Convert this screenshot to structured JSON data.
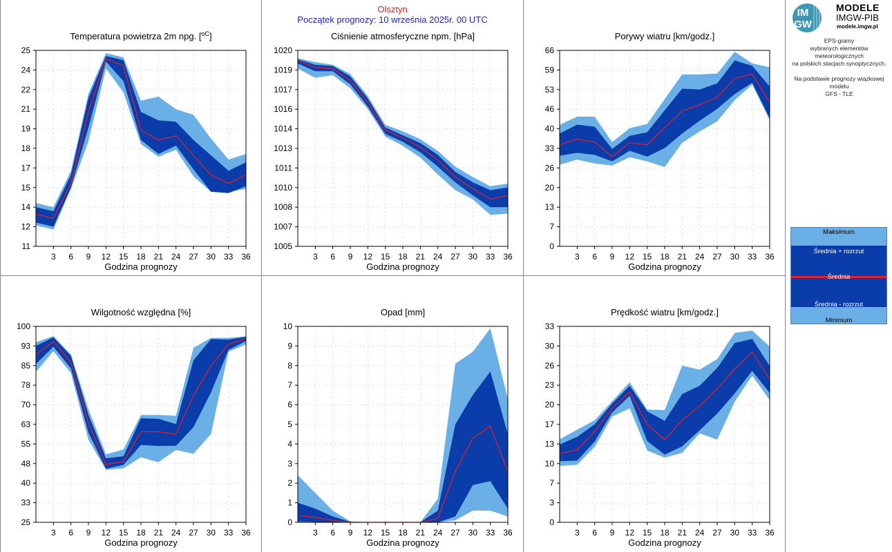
{
  "header": {
    "station": "Olsztyn",
    "forecast_start": "Początek prognozy: 10 września 2025r. 00 UTC"
  },
  "logo": {
    "mark_top": "IM",
    "mark_bottom": "GW",
    "title": "MODELE",
    "org": "IMGW-PIB",
    "url": "modele.imgw.pl"
  },
  "info": {
    "line1": "EPS-gramy",
    "line2": "wybranych elementów meteorologicznych",
    "line3": "na polskich stacjach  synoptycznych.",
    "line4": "Na podstawie prognozy wiązkowej modelu",
    "line5": "GFS - TLE"
  },
  "legend": {
    "max": "Maksimum",
    "mean_plus": "Średnia + rozrzut",
    "mean": "Średnia",
    "mean_minus": "Średnia - rozrzut",
    "min": "Minimum"
  },
  "colors": {
    "outer_band": "#6aafe6",
    "inner_band": "#0a3caa",
    "mean_line": "#e8202a",
    "title_station": "#e0201c",
    "title_start": "#1f1fb4"
  },
  "chart_data": [
    {
      "type": "area",
      "title": "Temperatura powietrza 2m npg. [",
      "title_unit": "oC",
      "title_end": "]",
      "xlabel": "Godzina prognozy",
      "x": [
        0,
        3,
        6,
        9,
        12,
        15,
        18,
        21,
        24,
        27,
        30,
        33,
        36
      ],
      "xticks": [
        "3",
        "6",
        "9",
        "12",
        "15",
        "18",
        "21",
        "24",
        "27",
        "30",
        "33",
        "36"
      ],
      "ylim": [
        11,
        25
      ],
      "yticks": [
        "11",
        "12",
        "14",
        "15",
        "17",
        "18",
        "19",
        "21",
        "22",
        "24",
        "25"
      ],
      "max": [
        14.1,
        13.8,
        16.4,
        21.9,
        24.8,
        24.5,
        21.4,
        21.7,
        20.8,
        20.4,
        18.7,
        17.2,
        17.6
      ],
      "mean_plus": [
        13.8,
        13.5,
        16.1,
        21.6,
        24.6,
        24.3,
        20.6,
        20.0,
        19.9,
        18.6,
        17.5,
        16.4,
        17.0
      ],
      "mean": [
        13.3,
        13.0,
        15.5,
        20.6,
        24.4,
        23.9,
        19.3,
        18.6,
        18.9,
        17.5,
        16.1,
        15.5,
        16.1
      ],
      "mean_minus": [
        12.7,
        12.4,
        15.2,
        19.5,
        24.2,
        22.8,
        18.6,
        17.6,
        18.2,
        16.5,
        14.9,
        14.8,
        15.3
      ],
      "min": [
        12.5,
        12.2,
        15.1,
        18.5,
        23.7,
        22.0,
        18.3,
        17.4,
        17.9,
        16.0,
        14.9,
        14.9,
        15.1
      ]
    },
    {
      "type": "area",
      "title": "Ciśnienie atmosferyczne npm. [hPa]",
      "xlabel": "Godzina prognozy",
      "x": [
        0,
        3,
        6,
        9,
        12,
        15,
        18,
        21,
        24,
        27,
        30,
        33,
        36
      ],
      "xticks": [
        "3",
        "6",
        "9",
        "12",
        "15",
        "18",
        "21",
        "24",
        "27",
        "30",
        "33",
        "36"
      ],
      "ylim": [
        1005,
        1020
      ],
      "yticks": [
        "1005",
        "1007",
        "1008",
        "1010",
        "1011",
        "1013",
        "1014",
        "1016",
        "1017",
        "1019",
        "1020"
      ],
      "max": [
        1019.4,
        1019.1,
        1018.9,
        1018.2,
        1016.5,
        1014.3,
        1013.8,
        1013.2,
        1012.3,
        1011.1,
        1010.3,
        1009.6,
        1009.8
      ],
      "mean_plus": [
        1019.3,
        1018.9,
        1018.8,
        1018.0,
        1016.3,
        1014.1,
        1013.5,
        1012.9,
        1012.0,
        1010.7,
        1009.9,
        1009.3,
        1009.5
      ],
      "mean": [
        1019.2,
        1018.7,
        1018.6,
        1017.7,
        1016.0,
        1013.9,
        1013.3,
        1012.6,
        1011.6,
        1010.3,
        1009.4,
        1008.6,
        1008.9
      ],
      "mean_minus": [
        1019.0,
        1018.4,
        1018.4,
        1017.4,
        1015.7,
        1013.6,
        1013.0,
        1012.2,
        1011.1,
        1009.9,
        1008.9,
        1008.0,
        1008.0
      ],
      "min": [
        1018.6,
        1017.9,
        1018.1,
        1017.1,
        1015.5,
        1013.4,
        1012.7,
        1011.8,
        1010.5,
        1009.3,
        1008.6,
        1007.4,
        1007.5
      ]
    },
    {
      "type": "area",
      "title": "Porywy wiatru [km/godz.]",
      "xlabel": "Godzina prognozy",
      "x": [
        0,
        3,
        6,
        9,
        12,
        15,
        18,
        21,
        24,
        27,
        30,
        33,
        36
      ],
      "xticks": [
        "3",
        "6",
        "9",
        "12",
        "15",
        "18",
        "21",
        "24",
        "27",
        "30",
        "33",
        "36"
      ],
      "ylim": [
        0,
        66
      ],
      "yticks": [
        "0",
        "7",
        "13",
        "20",
        "26",
        "33",
        "40",
        "46",
        "53",
        "59",
        "66"
      ],
      "max": [
        40.9,
        43.7,
        43.7,
        35.1,
        39.8,
        41.2,
        49.6,
        57.9,
        57.9,
        58.2,
        65.5,
        61.6,
        60.3
      ],
      "mean_plus": [
        38.0,
        41.0,
        40.3,
        32.8,
        37.2,
        38.4,
        45.8,
        53.1,
        52.8,
        54.9,
        62.6,
        60.8,
        53.8
      ],
      "mean": [
        34.2,
        36.1,
        35.1,
        30.2,
        34.9,
        34.2,
        39.9,
        45.6,
        47.7,
        50.1,
        56.5,
        58.1,
        48.4
      ],
      "mean_minus": [
        30.5,
        31.5,
        30.8,
        28.6,
        32.2,
        30.2,
        33.1,
        38.0,
        42.3,
        46.3,
        51.3,
        55.1,
        43.1
      ],
      "min": [
        27.5,
        29.2,
        27.9,
        27.2,
        30.0,
        28.6,
        26.7,
        34.9,
        38.7,
        42.1,
        49.2,
        54.5,
        42.5
      ]
    },
    {
      "type": "area",
      "title": "Wilgotność względna [%]",
      "xlabel": "Godzina prognozy",
      "x": [
        0,
        3,
        6,
        9,
        12,
        15,
        18,
        21,
        24,
        27,
        30,
        33,
        36
      ],
      "xticks": [
        "3",
        "6",
        "9",
        "12",
        "15",
        "18",
        "21",
        "24",
        "27",
        "30",
        "33",
        "36"
      ],
      "ylim": [
        25,
        100
      ],
      "yticks": [
        "25",
        "33",
        "40",
        "48",
        "55",
        "63",
        "70",
        "78",
        "85",
        "93",
        "100"
      ],
      "max": [
        93.9,
        96.3,
        89.2,
        68.3,
        51.0,
        52.9,
        66.1,
        66.1,
        65.8,
        91.8,
        95.6,
        95.6,
        96.2
      ],
      "mean_plus": [
        92.5,
        95.8,
        88.7,
        66.1,
        49.5,
        50.3,
        64.8,
        64.6,
        62.6,
        87.0,
        95.1,
        94.9,
        96.0
      ],
      "mean": [
        89.2,
        94.2,
        86.2,
        63.0,
        47.2,
        48.2,
        59.7,
        59.7,
        58.7,
        73.5,
        84.9,
        93.2,
        95.4
      ],
      "mean_minus": [
        85.6,
        92.2,
        83.9,
        59.4,
        45.5,
        47.0,
        54.6,
        54.2,
        54.3,
        61.4,
        74.7,
        91.0,
        94.4
      ],
      "min": [
        82.6,
        90.5,
        82.1,
        56.6,
        45.1,
        45.7,
        49.9,
        48.0,
        52.7,
        51.2,
        58.8,
        90.3,
        93.1
      ]
    },
    {
      "type": "area",
      "title": "Opad [mm]",
      "xlabel": "Godzina prognozy",
      "x": [
        0,
        3,
        6,
        9,
        12,
        15,
        18,
        21,
        24,
        27,
        30,
        33,
        36
      ],
      "xticks": [
        "3",
        "6",
        "9",
        "12",
        "15",
        "18",
        "21",
        "24",
        "27",
        "30",
        "33",
        "36"
      ],
      "ylim": [
        0,
        10
      ],
      "yticks": [
        "0",
        "1",
        "2",
        "3",
        "4",
        "5",
        "6",
        "7",
        "8",
        "9",
        "10"
      ],
      "max": [
        2.4,
        1.5,
        0.6,
        0.05,
        0.0,
        0.0,
        0.0,
        0.0,
        1.2,
        8.1,
        8.7,
        9.9,
        6.3
      ],
      "mean_plus": [
        1.0,
        0.7,
        0.3,
        0.02,
        0.0,
        0.0,
        0.0,
        0.0,
        0.6,
        5.0,
        6.5,
        7.7,
        4.5
      ],
      "mean": [
        0.35,
        0.25,
        0.1,
        0.0,
        0.0,
        0.0,
        0.0,
        0.0,
        0.2,
        2.6,
        4.3,
        4.9,
        2.6
      ],
      "mean_minus": [
        0.05,
        0.02,
        0.0,
        0.0,
        0.0,
        0.0,
        0.0,
        0.0,
        0.0,
        0.3,
        1.9,
        2.1,
        0.7
      ],
      "min": [
        0.0,
        0.0,
        0.0,
        0.0,
        0.0,
        0.0,
        0.0,
        0.0,
        0.0,
        0.1,
        0.6,
        0.6,
        0.3
      ]
    },
    {
      "type": "area",
      "title": "Prędkość wiatru [km/godz.]",
      "xlabel": "Godzina prognozy",
      "x": [
        0,
        3,
        6,
        9,
        12,
        15,
        18,
        21,
        24,
        27,
        30,
        33,
        36
      ],
      "xticks": [
        "3",
        "6",
        "9",
        "12",
        "15",
        "18",
        "21",
        "24",
        "27",
        "30",
        "33",
        "36"
      ],
      "ylim": [
        0,
        33
      ],
      "yticks": [
        "0",
        "3",
        "7",
        "10",
        "13",
        "17",
        "20",
        "23",
        "26",
        "30",
        "33"
      ],
      "max": [
        14.0,
        15.6,
        17.2,
        20.4,
        23.6,
        19.0,
        18.9,
        26.4,
        25.7,
        27.5,
        31.9,
        32.3,
        29.6
      ],
      "mean_plus": [
        13.1,
        14.4,
        16.5,
        20.0,
        23.0,
        18.7,
        17.1,
        21.6,
        23.0,
        26.0,
        30.2,
        30.9,
        26.3
      ],
      "mean": [
        11.6,
        12.2,
        15.3,
        19.2,
        22.0,
        16.5,
        13.9,
        17.2,
        19.6,
        22.5,
        25.8,
        28.7,
        24.1
      ],
      "mean_minus": [
        10.3,
        10.4,
        13.6,
        18.5,
        21.3,
        13.7,
        11.4,
        12.8,
        15.5,
        18.3,
        21.7,
        25.5,
        21.8
      ],
      "min": [
        9.5,
        9.7,
        12.7,
        17.8,
        19.2,
        12.1,
        10.9,
        11.7,
        15.0,
        13.9,
        20.3,
        24.7,
        20.6
      ]
    }
  ]
}
